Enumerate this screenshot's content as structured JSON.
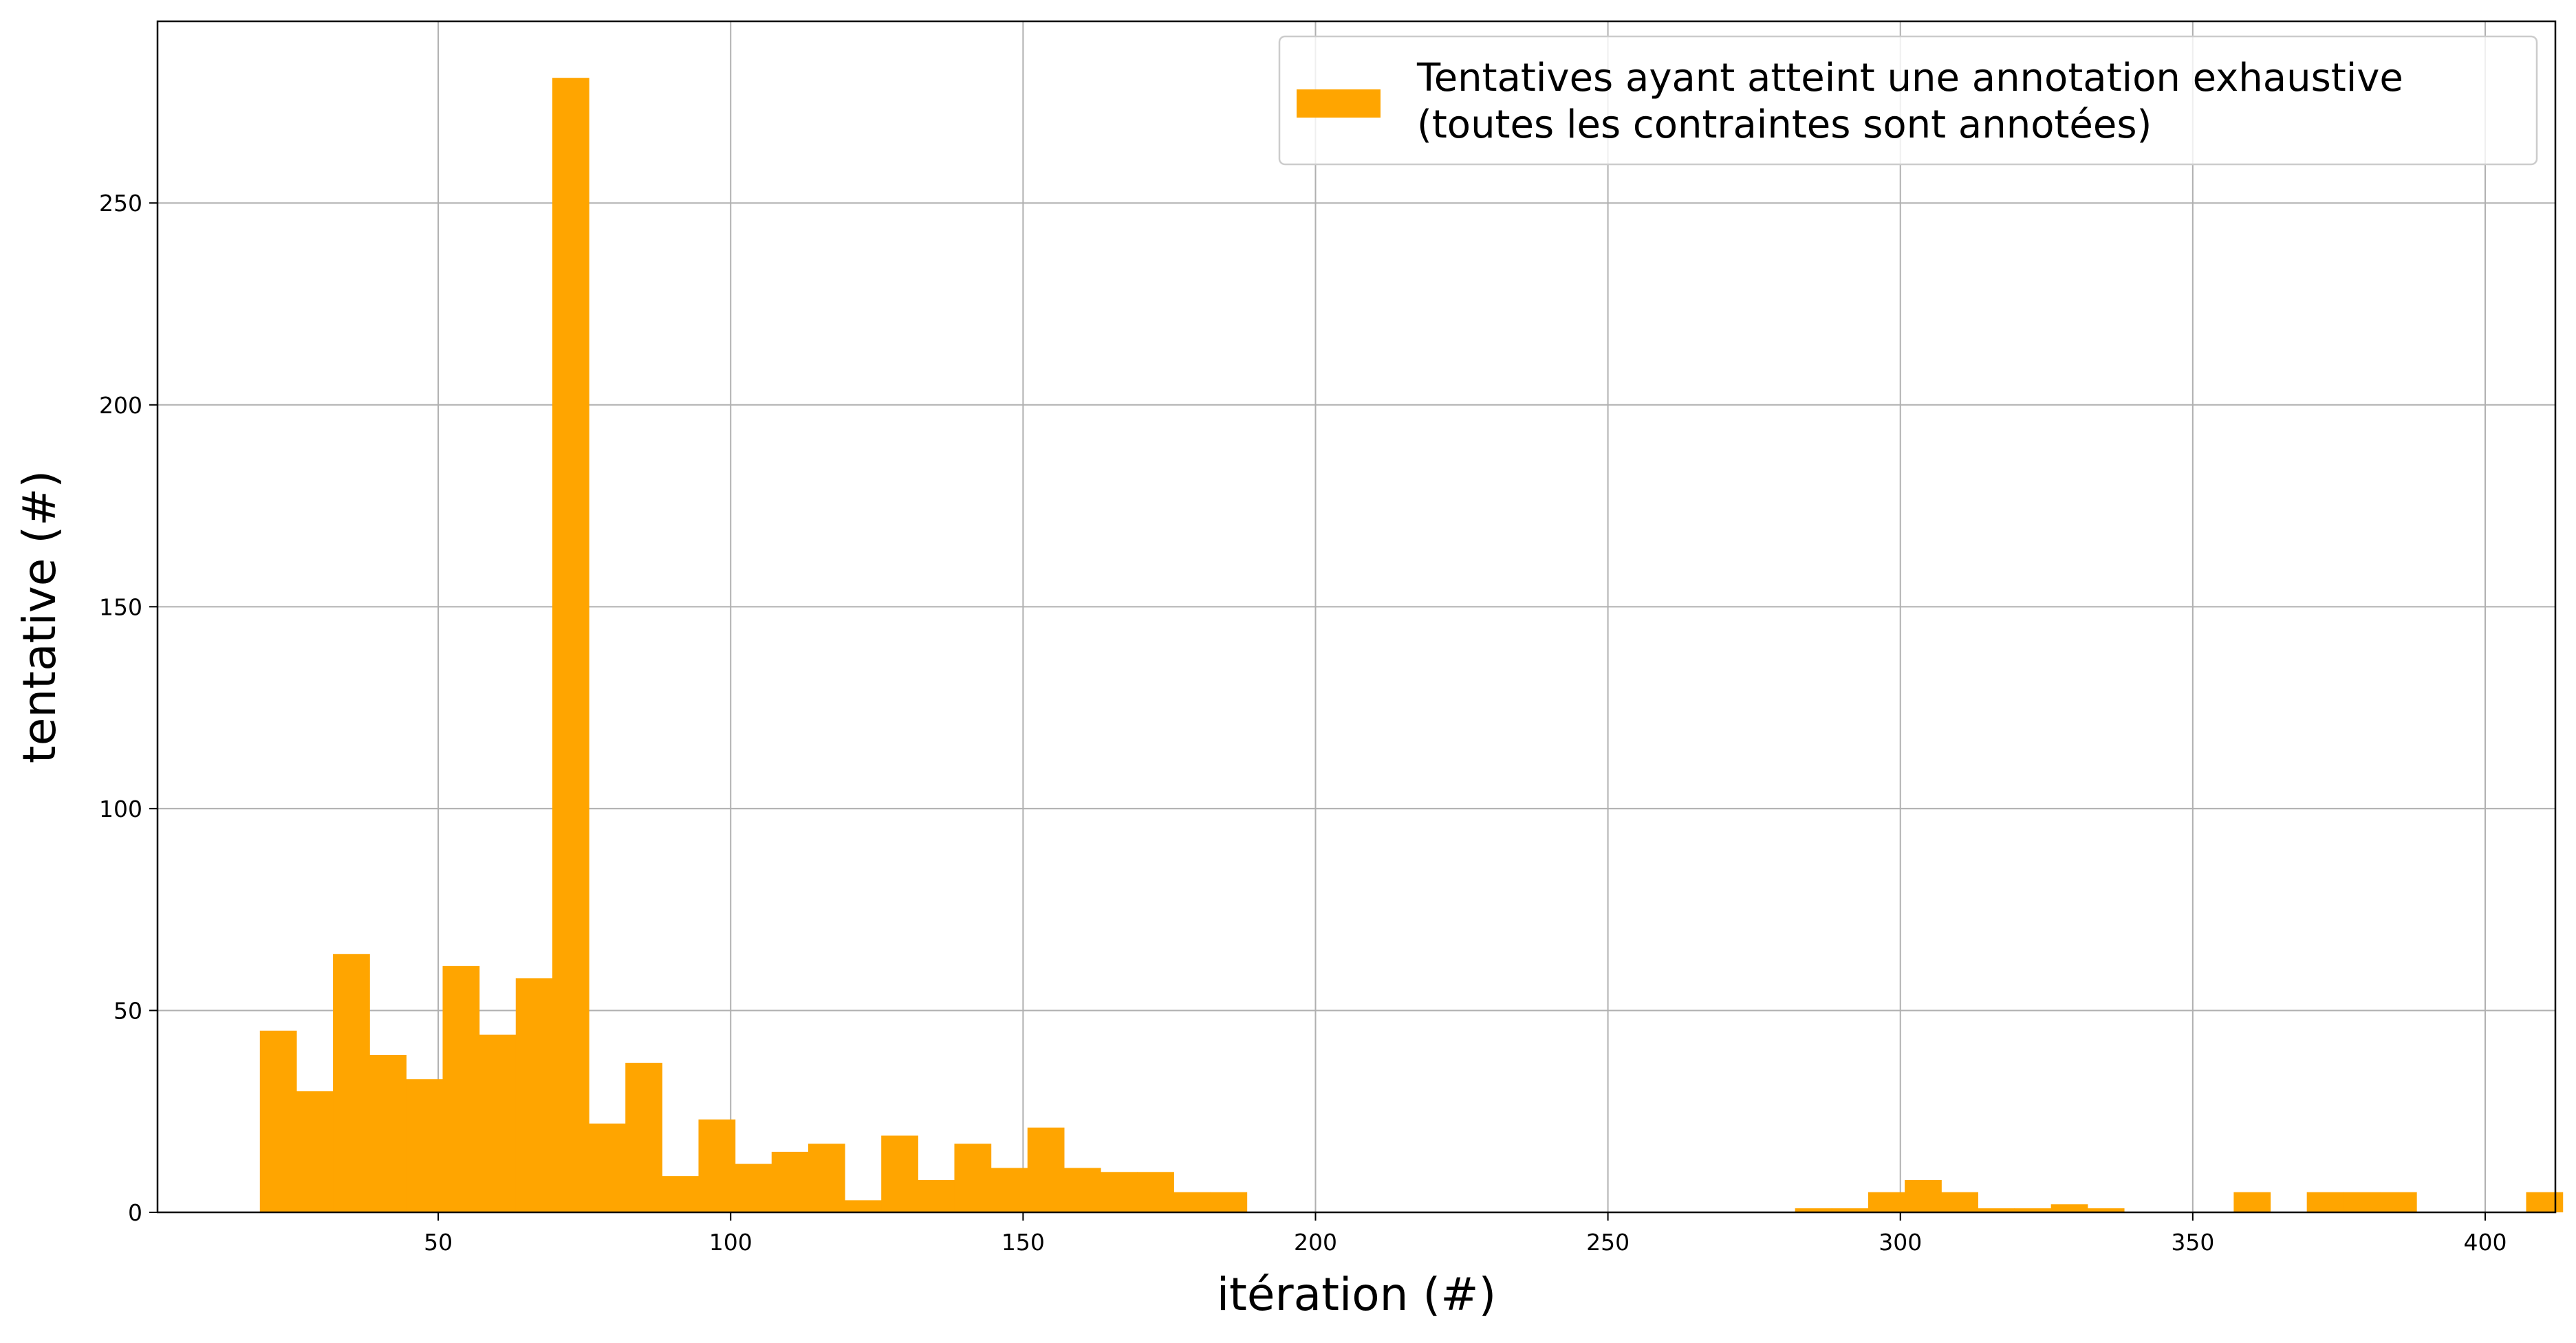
{
  "chart_data": {
    "type": "histogram",
    "xlabel": "itération (#)",
    "ylabel": "tentative (#)",
    "xlim": [
      2,
      412
    ],
    "ylim": [
      0,
      295
    ],
    "xticks": [
      50,
      100,
      150,
      200,
      250,
      300,
      350,
      400
    ],
    "yticks": [
      0,
      50,
      100,
      150,
      200,
      250
    ],
    "grid": true,
    "legend_position": "top-right",
    "series": [
      {
        "name": "Tentatives ayant atteint une annotation exhaustive\n(toutes les contraintes sont annotées)",
        "color": "#FFA500",
        "bin_start": 19.5,
        "bin_width": 6.25,
        "values": [
          45,
          30,
          64,
          39,
          33,
          61,
          44,
          58,
          281,
          22,
          37,
          9,
          23,
          12,
          15,
          17,
          3,
          19,
          8,
          17,
          11,
          21,
          11,
          10,
          10,
          5,
          5,
          0,
          0,
          0,
          0,
          0,
          0,
          0,
          0,
          0,
          0,
          0,
          0,
          0,
          0,
          0,
          1,
          1,
          5,
          8,
          5,
          1,
          1,
          2,
          1,
          0,
          0,
          0,
          5,
          0,
          5,
          5,
          5,
          0,
          0,
          0,
          5
        ]
      }
    ]
  }
}
